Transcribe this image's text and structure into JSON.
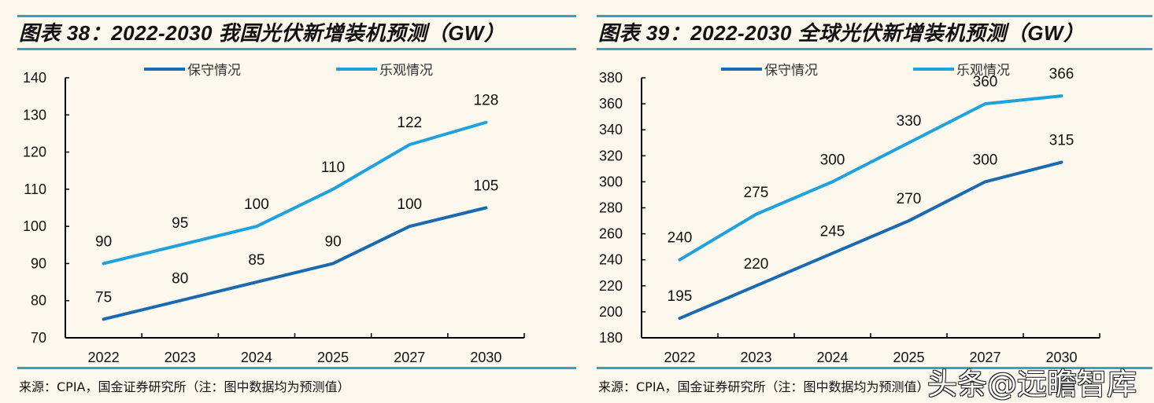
{
  "colors": {
    "background": "#FDF8EE",
    "rule": "#3A9FC8",
    "conservative": "#1B6AAF",
    "optimistic": "#1FA2DC",
    "axis": "#000000"
  },
  "watermark": "头条@远瞻智库",
  "chart_data": [
    {
      "type": "line",
      "title": "图表 38：2022-2030 我国光伏新增装机预测（GW）",
      "source": "来源：CPIA，国金证券研究所（注：图中数据均为预测值）",
      "categories": [
        "2022",
        "2023",
        "2024",
        "2025",
        "2027",
        "2030"
      ],
      "xlabel": "",
      "ylabel": "",
      "ylim": [
        70,
        140
      ],
      "yticks": [
        70,
        80,
        90,
        100,
        110,
        120,
        130,
        140
      ],
      "grid": false,
      "legend": "top-center",
      "series": [
        {
          "name": "保守情况",
          "color_key": "conservative",
          "values": [
            75,
            80,
            85,
            90,
            100,
            105
          ]
        },
        {
          "name": "乐观情况",
          "color_key": "optimistic",
          "values": [
            90,
            95,
            100,
            110,
            122,
            128
          ]
        }
      ]
    },
    {
      "type": "line",
      "title": "图表 39：2022-2030 全球光伏新增装机预测（GW）",
      "source": "来源：CPIA，国金证券研究所（注：图中数据均为预测值）",
      "categories": [
        "2022",
        "2023",
        "2024",
        "2025",
        "2027",
        "2030"
      ],
      "xlabel": "",
      "ylabel": "",
      "ylim": [
        180,
        380
      ],
      "yticks": [
        180,
        200,
        220,
        240,
        260,
        280,
        300,
        320,
        340,
        360,
        380
      ],
      "grid": false,
      "legend": "top-center",
      "series": [
        {
          "name": "保守情况",
          "color_key": "conservative",
          "values": [
            195,
            220,
            245,
            270,
            300,
            315
          ]
        },
        {
          "name": "乐观情况",
          "color_key": "optimistic",
          "values": [
            240,
            275,
            300,
            330,
            360,
            366
          ]
        }
      ]
    }
  ]
}
